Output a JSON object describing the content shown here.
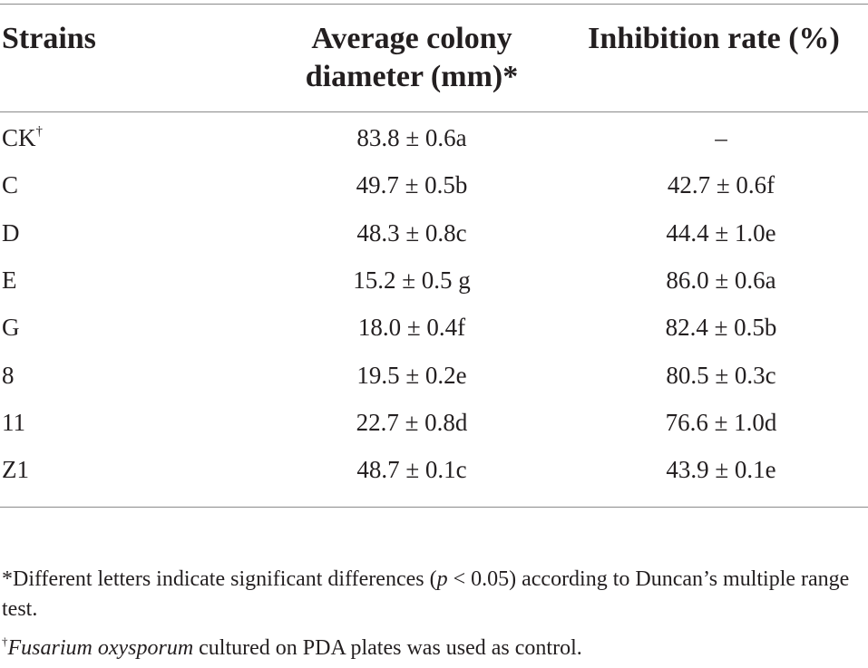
{
  "header": {
    "strains": "Strains",
    "avg_line1": "Average colony",
    "avg_line2": "diameter (mm)*",
    "inhibition": "Inhibition rate (%)"
  },
  "rows": [
    {
      "strain": "CK",
      "strain_sup": "†",
      "diameter": "83.8 ± 0.6a",
      "inhibition": "–"
    },
    {
      "strain": "C",
      "strain_sup": "",
      "diameter": "49.7 ± 0.5b",
      "inhibition": "42.7 ± 0.6f"
    },
    {
      "strain": "D",
      "strain_sup": "",
      "diameter": "48.3 ± 0.8c",
      "inhibition": "44.4 ± 1.0e"
    },
    {
      "strain": "E",
      "strain_sup": "",
      "diameter": "15.2 ± 0.5 g",
      "inhibition": "86.0 ± 0.6a"
    },
    {
      "strain": "G",
      "strain_sup": "",
      "diameter": "18.0 ± 0.4f",
      "inhibition": "82.4 ± 0.5b"
    },
    {
      "strain": "8",
      "strain_sup": "",
      "diameter": "19.5 ± 0.2e",
      "inhibition": "80.5 ± 0.3c"
    },
    {
      "strain": "11",
      "strain_sup": "",
      "diameter": "22.7 ± 0.8d",
      "inhibition": "76.6 ± 1.0d"
    },
    {
      "strain": "Z1",
      "strain_sup": "",
      "diameter": "48.7 ± 0.1c",
      "inhibition": "43.9 ± 0.1e"
    }
  ],
  "footnotes": {
    "note1_mark": "*",
    "note1_a": "Different letters indicate significant differences (",
    "note1_p": "p",
    "note1_b": " < 0.05) according to Duncan’s multiple range test.",
    "note2_mark": "†",
    "note2_species": "Fusarium oxysporum",
    "note2_rest": " cultured on PDA plates was used as control."
  }
}
